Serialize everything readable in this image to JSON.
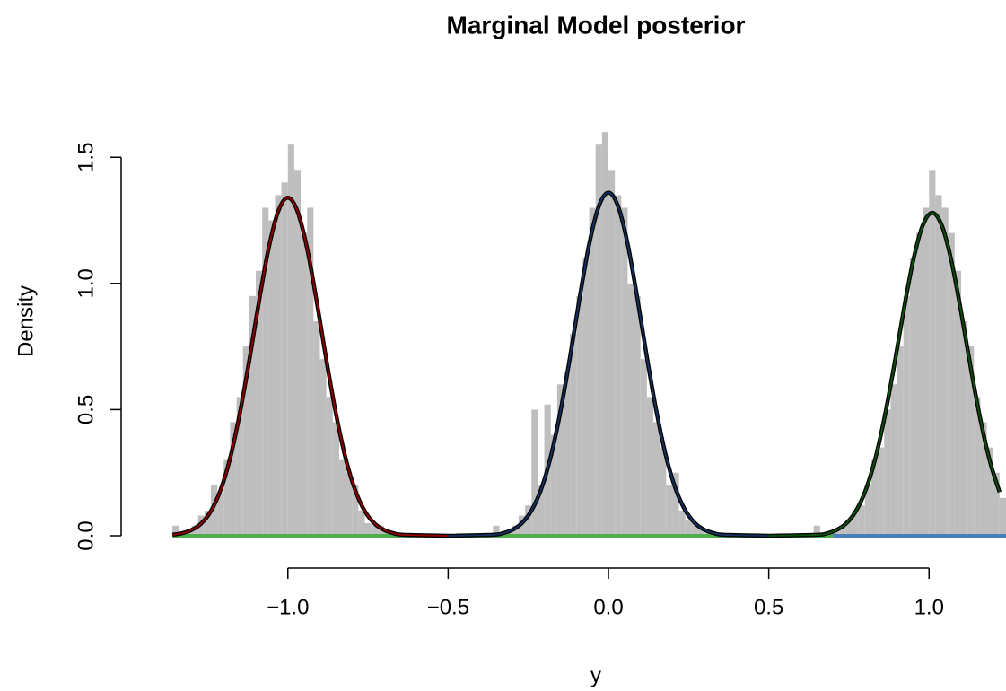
{
  "chart_data": {
    "type": "histogram",
    "title": "Marginal Model posterior",
    "xlabel": "y",
    "ylabel": "Density",
    "color": "#bebebe",
    "xlim": [
      -1.52,
      1.24
    ],
    "ylim": [
      0,
      1.7
    ],
    "xticks": [
      {
        "value": -1,
        "label": "−1.0"
      },
      {
        "value": -0.5,
        "label": "−0.5"
      },
      {
        "value": 0,
        "label": "0.0"
      },
      {
        "value": 0.5,
        "label": "0.5"
      },
      {
        "value": 1,
        "label": "1.0"
      }
    ],
    "yticks": [
      {
        "value": 0,
        "label": "0.0"
      },
      {
        "value": 0.5,
        "label": "0.5"
      },
      {
        "value": 1,
        "label": "1.0"
      },
      {
        "value": 1.5,
        "label": "1.5"
      }
    ],
    "bins": [
      -1.36,
      -1.34,
      -1.32,
      -1.3,
      -1.28,
      -1.26,
      -1.24,
      -1.22,
      -1.2,
      -1.18,
      -1.16,
      -1.14,
      -1.12,
      -1.1,
      -1.08,
      -1.06,
      -1.04,
      -1.02,
      -1,
      -0.98,
      -0.96,
      -0.94,
      -0.92,
      -0.9,
      -0.88,
      -0.86,
      -0.84,
      -0.82,
      -0.8,
      -0.78,
      -0.76,
      -0.74,
      -0.72,
      -0.7,
      -0.68,
      -0.66,
      -0.64,
      -0.62,
      -0.6,
      -0.58,
      -0.56,
      -0.54,
      -0.52,
      -0.5,
      -0.48,
      -0.46,
      -0.44,
      -0.42,
      -0.4,
      -0.38,
      -0.36,
      -0.34,
      -0.32,
      -0.3,
      -0.28,
      -0.26,
      -0.24,
      -0.22,
      -0.2,
      -0.18,
      -0.16,
      -0.14,
      -0.12,
      -0.1,
      -0.08,
      -0.06,
      -0.04,
      -0.02,
      0,
      0.02,
      0.04,
      0.06,
      0.08,
      0.1,
      0.12,
      0.14,
      0.16,
      0.18,
      0.2,
      0.22,
      0.24,
      0.26,
      0.28,
      0.3,
      0.32,
      0.34,
      0.36,
      0.38,
      0.4,
      0.42,
      0.44,
      0.46,
      0.48,
      0.5,
      0.52,
      0.54,
      0.56,
      0.58,
      0.6,
      0.62,
      0.64,
      0.66,
      0.68,
      0.7,
      0.72,
      0.74,
      0.76,
      0.78,
      0.8,
      0.82,
      0.84,
      0.86,
      0.88,
      0.9,
      0.92,
      0.94,
      0.96,
      0.98,
      1,
      1.02,
      1.04,
      1.06,
      1.08,
      1.1,
      1.12,
      1.14,
      1.16,
      1.18,
      1.2,
      1.22,
      1.24
    ],
    "values": [
      0.04,
      0,
      0.02,
      0.04,
      0.08,
      0.1,
      0.2,
      0.17,
      0.3,
      0.45,
      0.55,
      0.75,
      0.95,
      1.05,
      1.3,
      1.25,
      1.35,
      1.4,
      1.55,
      1.45,
      1.2,
      1.3,
      0.85,
      0.7,
      0.55,
      0.45,
      0.3,
      0.25,
      0.2,
      0.1,
      0.05,
      0.04,
      0.04,
      0.02,
      0,
      0,
      0,
      0,
      0,
      0,
      0,
      0,
      0,
      0,
      0,
      0,
      0,
      0,
      0,
      0,
      0.04,
      0,
      0.02,
      0.04,
      0.08,
      0.12,
      0.5,
      0.2,
      0.52,
      0.4,
      0.6,
      0.65,
      0.8,
      0.95,
      1.1,
      1.3,
      1.55,
      1.6,
      1.45,
      1.35,
      1.3,
      1.0,
      0.95,
      0.7,
      0.55,
      0.45,
      0.35,
      0.2,
      0.25,
      0.1,
      0.06,
      0.05,
      0.03,
      0.01,
      0,
      0,
      0,
      0,
      0,
      0,
      0,
      0,
      0,
      0,
      0,
      0,
      0,
      0,
      0,
      0,
      0.04,
      0,
      0.01,
      0.02,
      0.04,
      0.06,
      0.1,
      0.12,
      0.2,
      0.3,
      0.35,
      0.5,
      0.6,
      0.75,
      0.95,
      1.1,
      1.2,
      1.3,
      1.45,
      1.35,
      1.3,
      1.2,
      1.05,
      0.85,
      0.75,
      0.55,
      0.45,
      0.35,
      0.25,
      0.15
    ],
    "curves": [
      {
        "color": "#8b0000",
        "x": [
          -1.36,
          -1.33,
          -1.3,
          -1.27,
          -1.24,
          -1.21,
          -1.18,
          -1.15,
          -1.12,
          -1.09,
          -1.06,
          -1.03,
          -1,
          -0.97,
          -0.94,
          -0.91,
          -0.88,
          -0.85,
          -0.82,
          -0.79,
          -0.76,
          -0.73,
          -0.7,
          -0.67,
          -0.64,
          -0.5
        ],
        "values": [
          0.004,
          0.01,
          0.023,
          0.049,
          0.098,
          0.181,
          0.308,
          0.484,
          0.697,
          0.929,
          1.139,
          1.286,
          1.34,
          1.286,
          1.139,
          0.929,
          0.697,
          0.484,
          0.308,
          0.181,
          0.098,
          0.049,
          0.023,
          0.01,
          0.004,
          0
        ]
      },
      {
        "color": "#14305a",
        "x": [
          -0.5,
          -0.36,
          -0.33,
          -0.3,
          -0.27,
          -0.24,
          -0.21,
          -0.18,
          -0.15,
          -0.12,
          -0.09,
          -0.06,
          -0.03,
          0,
          0.03,
          0.06,
          0.09,
          0.12,
          0.15,
          0.18,
          0.21,
          0.24,
          0.27,
          0.3,
          0.33,
          0.36,
          0.5
        ],
        "values": [
          0,
          0.004,
          0.01,
          0.023,
          0.05,
          0.1,
          0.184,
          0.313,
          0.491,
          0.707,
          0.942,
          1.156,
          1.306,
          1.36,
          1.306,
          1.156,
          0.942,
          0.707,
          0.491,
          0.313,
          0.184,
          0.1,
          0.05,
          0.023,
          0.01,
          0.004,
          0
        ]
      },
      {
        "color": "#0d4d0d",
        "x": [
          0.5,
          0.65,
          0.68,
          0.71,
          0.74,
          0.77,
          0.8,
          0.83,
          0.86,
          0.89,
          0.92,
          0.95,
          0.98,
          1.01,
          1.04,
          1.07,
          1.1,
          1.13,
          1.16,
          1.19,
          1.22
        ],
        "values": [
          0,
          0.004,
          0.009,
          0.022,
          0.047,
          0.094,
          0.173,
          0.294,
          0.462,
          0.666,
          0.887,
          1.088,
          1.229,
          1.28,
          1.229,
          1.088,
          0.887,
          0.666,
          0.462,
          0.294,
          0.173
        ]
      }
    ],
    "baseline_segments": [
      {
        "color": "#4daf4a",
        "x": [
          -1.36,
          0.7
        ]
      },
      {
        "color": "#4a7eb8",
        "x": [
          0.7,
          1.24
        ]
      }
    ]
  }
}
